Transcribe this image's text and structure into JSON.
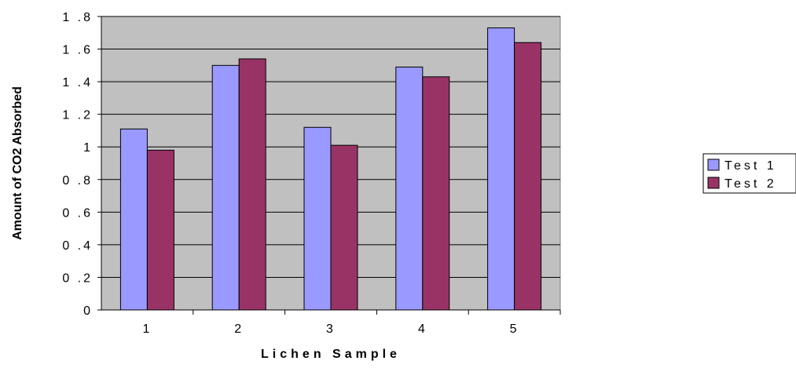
{
  "chart_data": {
    "type": "bar",
    "title": "",
    "xlabel": "Lichen Sample",
    "ylabel": "Amount of CO2 Absorbed",
    "categories": [
      "1",
      "2",
      "3",
      "4",
      "5"
    ],
    "series": [
      {
        "name": "Test 1",
        "values": [
          1.11,
          1.5,
          1.12,
          1.49,
          1.73
        ],
        "color": "#9999ff"
      },
      {
        "name": "Test 2",
        "values": [
          0.98,
          1.54,
          1.01,
          1.43,
          1.64
        ],
        "color": "#993366"
      }
    ],
    "ylim": [
      0,
      1.8
    ],
    "yticks": [
      "0",
      "0 .2",
      "0 .4",
      "0 .6",
      "0 .8",
      "1",
      "1 .2",
      "1 .4",
      "1 .6",
      "1 .8"
    ],
    "plot_background": "#c0c0c0",
    "grid": true,
    "legend_position": "right"
  }
}
